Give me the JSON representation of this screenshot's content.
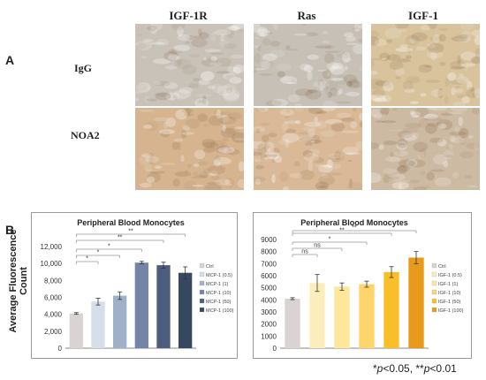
{
  "panel_a": {
    "label": "A",
    "columns": [
      "IGF-1R",
      "Ras",
      "IGF-1"
    ],
    "rows": [
      "IgG",
      "NOA2"
    ],
    "tile_colors": [
      [
        "#c9c2b8",
        "#c7c0b6",
        "#d8c39d"
      ],
      [
        "#d6b48f",
        "#d9b997",
        "#cdbaa2"
      ]
    ]
  },
  "panel_b": {
    "label": "B",
    "ylabel": "Average Fluorescence Count",
    "significance_note": "*p<0.05, **p<0.01"
  },
  "chart_data": [
    {
      "type": "bar",
      "title": "Peripheral Blood Monocytes",
      "categories": [
        "Ctrl",
        "MCP-1 (0.5)",
        "MCP-1 (1)",
        "MCP-1 (10)",
        "MCP-1 (50)",
        "MCP-1 (100)"
      ],
      "values": [
        4100,
        5500,
        6200,
        10100,
        9800,
        8900
      ],
      "errors": [
        100,
        400,
        450,
        150,
        350,
        700
      ],
      "colors": [
        "#d9d3d3",
        "#d6dee9",
        "#9fb0c8",
        "#7384a6",
        "#4c5d7e",
        "#364760"
      ],
      "ylim": [
        0,
        12000
      ],
      "yticks": [
        "0",
        "2,000",
        "4,000",
        "6,000",
        "8,000",
        "10,000",
        "12,000"
      ],
      "legend": [
        "Ctrl",
        "MCP-1 (0.5)",
        "MCP-1 (1)",
        "MCP-1 (10)",
        "MCP-1 (50)",
        "MCP-1 (100)"
      ],
      "legend_position": "right",
      "significance": [
        {
          "from": 0,
          "to": 1,
          "label": "*"
        },
        {
          "from": 0,
          "to": 2,
          "label": "*"
        },
        {
          "from": 0,
          "to": 3,
          "label": "*"
        },
        {
          "from": 0,
          "to": 4,
          "label": "**"
        },
        {
          "from": 0,
          "to": 5,
          "label": "**"
        }
      ]
    },
    {
      "type": "bar",
      "title": "Peripheral Blood Monocytes",
      "categories": [
        "Ctrl",
        "IGF-1 (0.5)",
        "IGF-1 (1)",
        "IGF-1 (10)",
        "IGF-1 (50)",
        "IGF-1 (100)"
      ],
      "values": [
        4100,
        5400,
        5100,
        5300,
        6300,
        7500
      ],
      "errors": [
        80,
        700,
        300,
        250,
        450,
        500
      ],
      "colors": [
        "#d9d3d3",
        "#fbeebc",
        "#fce79a",
        "#fdd56a",
        "#f9bf2b",
        "#e89a1c"
      ],
      "ylim": [
        0,
        9000
      ],
      "yticks": [
        "0",
        "1000",
        "2000",
        "3000",
        "4000",
        "5000",
        "6000",
        "7000",
        "8000",
        "9000"
      ],
      "legend": [
        "Ctrl",
        "IGF-1 (0.5)",
        "IGF-1 (1)",
        "IGF-1 (10)",
        "IGF-1 (50)",
        "IGF-1 (100)"
      ],
      "legend_position": "right",
      "significance": [
        {
          "from": 0,
          "to": 1,
          "label": "ns"
        },
        {
          "from": 0,
          "to": 2,
          "label": "ns"
        },
        {
          "from": 0,
          "to": 3,
          "label": "*"
        },
        {
          "from": 0,
          "to": 4,
          "label": "**"
        },
        {
          "from": 0,
          "to": 5,
          "label": "**"
        }
      ]
    }
  ]
}
